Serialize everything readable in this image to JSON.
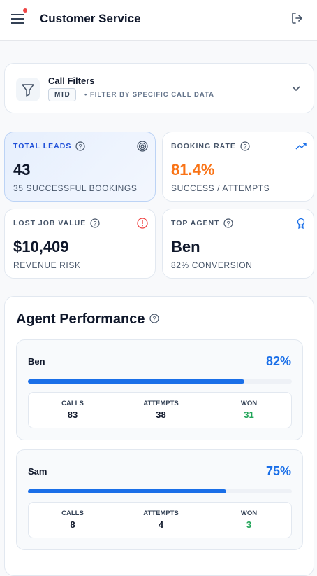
{
  "header": {
    "title": "Customer Service"
  },
  "filters": {
    "title": "Call Filters",
    "badge": "MTD",
    "hint": "• FILTER BY SPECIFIC CALL DATA"
  },
  "kpis": [
    {
      "label": "TOTAL LEADS",
      "value": "43",
      "sub": "35 SUCCESSFUL BOOKINGS"
    },
    {
      "label": "BOOKING RATE",
      "value": "81.4%",
      "sub": "SUCCESS / ATTEMPTS"
    },
    {
      "label": "LOST JOB VALUE",
      "value": "$10,409",
      "sub": "REVENUE RISK"
    },
    {
      "label": "TOP AGENT",
      "value": "Ben",
      "sub": "82% CONVERSION"
    }
  ],
  "performance": {
    "title": "Agent Performance",
    "agents": [
      {
        "name": "Ben",
        "rate": {
          "value": 82,
          "label": "82%"
        },
        "stats": [
          {
            "label": "CALLS",
            "value": 83
          },
          {
            "label": "ATTEMPTS",
            "value": 38
          },
          {
            "label": "WON",
            "value": 31
          }
        ]
      },
      {
        "name": "Sam",
        "rate": {
          "value": 75,
          "label": "75%"
        },
        "stats": [
          {
            "label": "CALLS",
            "value": 8
          },
          {
            "label": "ATTEMPTS",
            "value": 4
          },
          {
            "label": "WON",
            "value": 3
          }
        ]
      }
    ]
  }
}
